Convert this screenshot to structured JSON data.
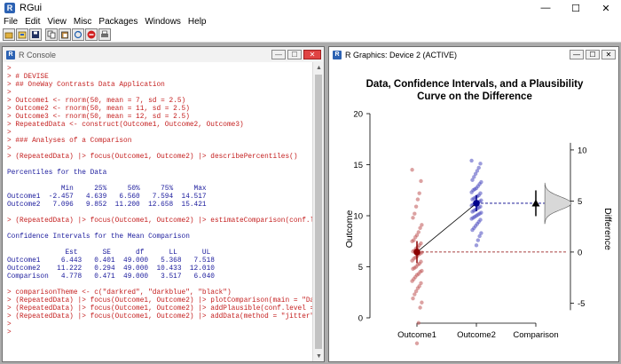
{
  "app": {
    "title": "RGui",
    "icon": "r-icon"
  },
  "window_controls": {
    "minimize": "—",
    "maximize": "☐",
    "close": "✕"
  },
  "menu": [
    "File",
    "Edit",
    "View",
    "Misc",
    "Packages",
    "Windows",
    "Help"
  ],
  "toolbar": [
    "open-script-icon",
    "load-workspace-icon",
    "save-workspace-icon",
    "copy-icon",
    "paste-icon",
    "copy-paste-icon",
    "stop-icon",
    "print-icon"
  ],
  "console": {
    "title": "R Console",
    "lines": [
      {
        "text": ">",
        "color": "red"
      },
      {
        "text": "> # DEVISE",
        "color": "red"
      },
      {
        "text": "> ## OneWay Contrasts Data Application",
        "color": "red"
      },
      {
        "text": ">",
        "color": "red"
      },
      {
        "text": "> Outcome1 <- rnorm(50, mean = 7, sd = 2.5)",
        "color": "red"
      },
      {
        "text": "> Outcome2 <- rnorm(50, mean = 11, sd = 2.5)",
        "color": "red"
      },
      {
        "text": "> Outcome3 <- rnorm(50, mean = 12, sd = 2.5)",
        "color": "red"
      },
      {
        "text": "> RepeatedData <- construct(Outcome1, Outcome2, Outcome3)",
        "color": "red"
      },
      {
        "text": ">",
        "color": "red"
      },
      {
        "text": "> ### Analyses of a Comparison",
        "color": "red"
      },
      {
        "text": ">",
        "color": "red"
      },
      {
        "text": "> (RepeatedData) |> focus(Outcome1, Outcome2) |> describePercentiles()",
        "color": "red"
      },
      {
        "text": "",
        "color": "blue"
      },
      {
        "text": "Percentiles for the Data",
        "color": "blue"
      },
      {
        "text": "",
        "color": "blue"
      },
      {
        "text": "             Min     25%     50%     75%     Max",
        "color": "blue"
      },
      {
        "text": "Outcome1  -2.457   4.639   6.560   7.594  14.517",
        "color": "blue"
      },
      {
        "text": "Outcome2   7.096   9.852  11.200  12.658  15.421",
        "color": "blue"
      },
      {
        "text": "",
        "color": "blue"
      },
      {
        "text": "> (RepeatedData) |> focus(Outcome1, Outcome2) |> estimateComparison(conf.l",
        "color": "red"
      },
      {
        "text": "",
        "color": "blue"
      },
      {
        "text": "Confidence Intervals for the Mean Comparison",
        "color": "blue"
      },
      {
        "text": "",
        "color": "blue"
      },
      {
        "text": "              Est      SE      df      LL      UL",
        "color": "blue"
      },
      {
        "text": "Outcome1     6.443   0.401  49.000   5.368   7.518",
        "color": "blue"
      },
      {
        "text": "Outcome2    11.222   0.294  49.000  10.433  12.010",
        "color": "blue"
      },
      {
        "text": "Comparison   4.778   0.471  49.000   3.517   6.040",
        "color": "blue"
      },
      {
        "text": "",
        "color": "blue"
      },
      {
        "text": "> comparisonTheme <- c(\"darkred\", \"darkblue\", \"black\")",
        "color": "red"
      },
      {
        "text": "> (RepeatedData) |> focus(Outcome1, Outcome2) |> plotComparison(main = \"Da",
        "color": "red"
      },
      {
        "text": "> (RepeatedData) |> focus(Outcome1, Outcome2) |> addPlausible(conf.level =",
        "color": "red"
      },
      {
        "text": "> (RepeatedData) |> focus(Outcome1, Outcome2) |> addData(method = \"jitter\"",
        "color": "red"
      },
      {
        "text": ">",
        "color": "red"
      },
      {
        "text": ">",
        "color": "red"
      }
    ]
  },
  "graphics": {
    "title": "R Graphics: Device 2 (ACTIVE)",
    "chart_data": {
      "type": "scatter",
      "title": "Data, Confidence Intervals, and a Plausibility",
      "subtitle": "Curve on the Difference",
      "ylabel": "Outcome",
      "y2label": "Difference",
      "categories": [
        "Outcome1",
        "Outcome2",
        "Comparison"
      ],
      "ylim": [
        0,
        20
      ],
      "yticks": [
        0,
        5,
        10,
        15,
        20
      ],
      "y2ticks": [
        -5,
        0,
        5,
        10
      ],
      "y2_zero_at_y": 6.443,
      "colors": {
        "Outcome1": "#8b0000",
        "Outcome2": "#00008b",
        "Comparison": "#000000"
      },
      "means": [
        {
          "name": "Outcome1",
          "est": 6.443,
          "ll": 5.368,
          "ul": 7.518
        },
        {
          "name": "Outcome2",
          "est": 11.222,
          "ll": 10.433,
          "ul": 12.01
        },
        {
          "name": "Comparison",
          "est": 4.778,
          "ll": 3.517,
          "ul": 6.04
        }
      ],
      "data_points": {
        "Outcome1": [
          14.5,
          13.4,
          12.2,
          11.6,
          10.9,
          10.2,
          9.8,
          9.1,
          8.8,
          8.4,
          8.1,
          7.9,
          7.6,
          7.5,
          7.3,
          7.1,
          6.9,
          6.8,
          6.6,
          6.5,
          6.4,
          6.3,
          6.2,
          6.0,
          5.9,
          5.8,
          5.6,
          5.5,
          5.3,
          5.2,
          5.0,
          4.9,
          4.8,
          4.6,
          4.5,
          4.3,
          4.2,
          4.0,
          3.8,
          3.6,
          3.4,
          3.1,
          2.9,
          2.6,
          2.3,
          1.9,
          1.5,
          1.0,
          -0.5,
          -2.5
        ],
        "Outcome2": [
          15.4,
          15.1,
          14.7,
          14.4,
          14.1,
          13.8,
          13.5,
          13.3,
          13.1,
          12.9,
          12.7,
          12.6,
          12.5,
          12.3,
          12.2,
          12.0,
          11.9,
          11.8,
          11.7,
          11.6,
          11.5,
          11.4,
          11.3,
          11.2,
          11.2,
          11.1,
          11.0,
          10.9,
          10.8,
          10.7,
          10.6,
          10.5,
          10.4,
          10.3,
          10.2,
          10.1,
          10.0,
          9.9,
          9.8,
          9.7,
          9.6,
          9.4,
          9.2,
          9.0,
          8.8,
          8.6,
          8.3,
          8.0,
          7.6,
          7.1
        ]
      }
    }
  }
}
